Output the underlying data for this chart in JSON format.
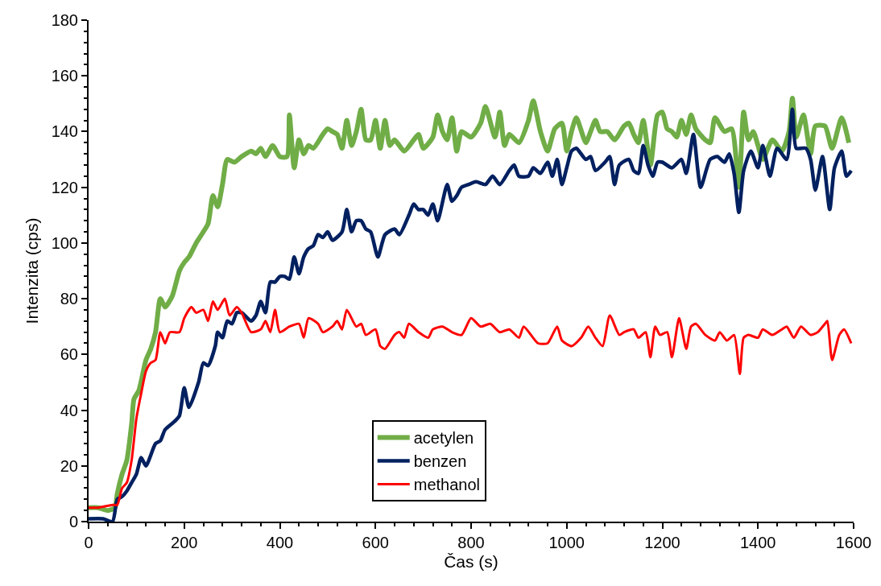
{
  "chart_data": {
    "type": "line",
    "xlabel": "Čas (s)",
    "ylabel": "Intenzita (cps)",
    "xlim": [
      0,
      1600
    ],
    "xticks": [
      0,
      200,
      400,
      600,
      800,
      1000,
      1200,
      1400,
      1600
    ],
    "ylim": [
      0,
      180
    ],
    "yticks": [
      0,
      20,
      40,
      60,
      80,
      100,
      120,
      140,
      160,
      180
    ],
    "grid": false,
    "legend": "bottom",
    "marker": "none",
    "line_style": "solid",
    "series": [
      {
        "name": "acetylen",
        "color": "#70ad47",
        "x": [
          0,
          20,
          40,
          55,
          60,
          70,
          80,
          90,
          95,
          105,
          120,
          130,
          140,
          150,
          160,
          175,
          190,
          200,
          210,
          225,
          240,
          250,
          260,
          270,
          280,
          290,
          305,
          320,
          340,
          350,
          360,
          370,
          385,
          400,
          415,
          420,
          430,
          440,
          450,
          460,
          470,
          490,
          500,
          510,
          520,
          530,
          540,
          550,
          560,
          570,
          580,
          590,
          600,
          610,
          620,
          630,
          640,
          660,
          680,
          690,
          700,
          720,
          730,
          740,
          750,
          760,
          770,
          780,
          800,
          820,
          830,
          850,
          860,
          870,
          880,
          900,
          920,
          930,
          945,
          960,
          975,
          990,
          1000,
          1010,
          1020,
          1040,
          1050,
          1060,
          1070,
          1085,
          1100,
          1120,
          1130,
          1140,
          1150,
          1160,
          1175,
          1190,
          1200,
          1210,
          1220,
          1230,
          1240,
          1250,
          1260,
          1270,
          1290,
          1300,
          1310,
          1330,
          1345,
          1360,
          1370,
          1380,
          1390,
          1400,
          1410,
          1430,
          1450,
          1465,
          1472,
          1480,
          1495,
          1510,
          1520,
          1540,
          1555,
          1575,
          1590
        ],
        "values": [
          5,
          5,
          4,
          5,
          10,
          17,
          22,
          35,
          44,
          47,
          58,
          62,
          68,
          80,
          77,
          81,
          90,
          93,
          95,
          100,
          104,
          107,
          117,
          113,
          121,
          130,
          129,
          131,
          133,
          132,
          134,
          131,
          135,
          131,
          131,
          146,
          127,
          137,
          132,
          135,
          134,
          139,
          141,
          140,
          139,
          134,
          144,
          135,
          140,
          148,
          137,
          137,
          144,
          134,
          144,
          135,
          137,
          133,
          137,
          139,
          134,
          138,
          146,
          140,
          137,
          145,
          133,
          140,
          138,
          143,
          149,
          138,
          147,
          135,
          139,
          136,
          144,
          151,
          140,
          133,
          141,
          143,
          133,
          140,
          145,
          136,
          140,
          144,
          140,
          140,
          137,
          142,
          143,
          139,
          136,
          144,
          128,
          146,
          147,
          141,
          140,
          138,
          144,
          139,
          146,
          141,
          137,
          136,
          145,
          140,
          141,
          120,
          147,
          137,
          140,
          135,
          130,
          137,
          133,
          140,
          152,
          138,
          146,
          132,
          142,
          142,
          134,
          145,
          136
        ]
      },
      {
        "name": "benzen",
        "color": "#002060",
        "x": [
          0,
          30,
          50,
          60,
          70,
          80,
          90,
          100,
          110,
          120,
          140,
          150,
          160,
          180,
          190,
          200,
          210,
          230,
          240,
          250,
          265,
          270,
          280,
          290,
          300,
          310,
          320,
          340,
          350,
          360,
          370,
          380,
          390,
          400,
          410,
          420,
          430,
          440,
          450,
          460,
          470,
          480,
          490,
          500,
          510,
          530,
          540,
          550,
          560,
          570,
          580,
          590,
          605,
          620,
          640,
          650,
          670,
          680,
          690,
          700,
          710,
          720,
          730,
          750,
          760,
          770,
          780,
          795,
          810,
          830,
          845,
          860,
          880,
          890,
          900,
          920,
          930,
          945,
          960,
          970,
          980,
          990,
          1000,
          1010,
          1020,
          1040,
          1050,
          1060,
          1080,
          1090,
          1100,
          1110,
          1130,
          1140,
          1150,
          1160,
          1170,
          1180,
          1190,
          1200,
          1220,
          1240,
          1250,
          1265,
          1280,
          1300,
          1315,
          1330,
          1340,
          1350,
          1360,
          1370,
          1385,
          1400,
          1410,
          1425,
          1440,
          1460,
          1472,
          1480,
          1500,
          1510,
          1520,
          1535,
          1550,
          1560,
          1575,
          1585,
          1595
        ],
        "values": [
          1,
          1,
          0,
          8,
          9,
          11,
          14,
          17,
          23,
          20,
          28,
          29,
          33,
          36,
          38,
          48,
          41,
          50,
          57,
          56,
          63,
          68,
          66,
          72,
          71,
          75,
          75,
          72,
          74,
          79,
          75,
          86,
          86,
          88,
          88,
          87,
          95,
          89,
          95,
          98,
          99,
          103,
          102,
          104,
          101,
          104,
          112,
          104,
          108,
          108,
          105,
          104,
          95,
          103,
          105,
          103,
          110,
          114,
          112,
          112,
          110,
          114,
          108,
          121,
          115,
          117,
          120,
          121,
          122,
          121,
          124,
          121,
          126,
          128,
          124,
          124,
          127,
          125,
          129,
          124,
          130,
          121,
          127,
          133,
          134,
          130,
          131,
          126,
          129,
          131,
          121,
          128,
          130,
          126,
          125,
          135,
          128,
          124,
          129,
          129,
          127,
          130,
          125,
          139,
          120,
          130,
          131,
          129,
          132,
          125,
          111,
          126,
          133,
          127,
          135,
          124,
          134,
          130,
          148,
          134,
          134,
          130,
          119,
          131,
          112,
          127,
          133,
          124,
          126
        ]
      },
      {
        "name": "methanol",
        "color": "#ff0000",
        "x": [
          0,
          20,
          50,
          60,
          70,
          80,
          90,
          100,
          110,
          120,
          130,
          140,
          150,
          160,
          170,
          190,
          200,
          215,
          225,
          240,
          250,
          260,
          270,
          285,
          295,
          310,
          320,
          340,
          360,
          370,
          380,
          390,
          400,
          420,
          440,
          450,
          460,
          480,
          490,
          510,
          520,
          530,
          540,
          560,
          570,
          580,
          600,
          610,
          620,
          640,
          650,
          660,
          670,
          690,
          710,
          720,
          740,
          760,
          780,
          800,
          820,
          840,
          860,
          880,
          900,
          910,
          940,
          960,
          980,
          990,
          1010,
          1030,
          1045,
          1060,
          1075,
          1090,
          1110,
          1120,
          1140,
          1150,
          1165,
          1175,
          1185,
          1195,
          1210,
          1220,
          1235,
          1250,
          1260,
          1270,
          1290,
          1310,
          1320,
          1335,
          1350,
          1362,
          1370,
          1380,
          1400,
          1410,
          1430,
          1450,
          1460,
          1475,
          1490,
          1510,
          1525,
          1540,
          1545,
          1555,
          1570,
          1580,
          1595
        ],
        "values": [
          5,
          5,
          6,
          6,
          12,
          14,
          22,
          37,
          46,
          54,
          57,
          58,
          68,
          64,
          68,
          68,
          73,
          77,
          75,
          76,
          72,
          79,
          76,
          80,
          74,
          77,
          75,
          68,
          69,
          72,
          68,
          76,
          68,
          70,
          71,
          66,
          73,
          71,
          68,
          70,
          72,
          69,
          76,
          70,
          71,
          67,
          69,
          63,
          62,
          67,
          68,
          66,
          71,
          68,
          66,
          69,
          70,
          68,
          67,
          73,
          70,
          71,
          68,
          69,
          66,
          70,
          64,
          64,
          70,
          65,
          63,
          66,
          70,
          66,
          63,
          74,
          67,
          68,
          69,
          66,
          68,
          59,
          70,
          67,
          68,
          59,
          73,
          62,
          70,
          71,
          67,
          65,
          68,
          65,
          67,
          53,
          66,
          67,
          66,
          69,
          67,
          69,
          70,
          66,
          70,
          67,
          68,
          71,
          72,
          58,
          67,
          69,
          64
        ]
      }
    ]
  }
}
